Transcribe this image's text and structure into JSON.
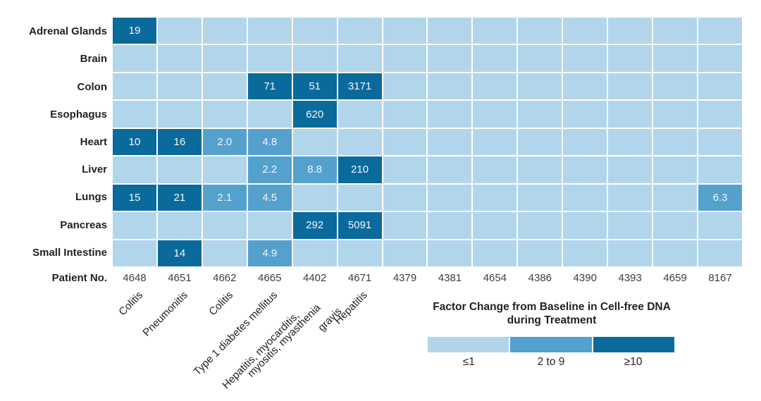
{
  "chart_data": {
    "type": "heatmap",
    "rows": [
      "Adrenal Glands",
      "Brain",
      "Colon",
      "Esophagus",
      "Heart",
      "Liver",
      "Lungs",
      "Pancreas",
      "Small Intestine"
    ],
    "columns_axis_label": "Patient No.",
    "columns": [
      "4648",
      "4651",
      "4662",
      "4665",
      "4402",
      "4671",
      "4379",
      "4381",
      "4654",
      "4386",
      "4390",
      "4393",
      "4659",
      "8167"
    ],
    "cells": [
      [
        "19",
        "",
        "",
        "",
        "",
        "",
        "",
        "",
        "",
        "",
        "",
        "",
        "",
        ""
      ],
      [
        "",
        "",
        "",
        "",
        "",
        "",
        "",
        "",
        "",
        "",
        "",
        "",
        "",
        ""
      ],
      [
        "",
        "",
        "",
        "71",
        "51",
        "3171",
        "",
        "",
        "",
        "",
        "",
        "",
        "",
        ""
      ],
      [
        "",
        "",
        "",
        "",
        "620",
        "",
        "",
        "",
        "",
        "",
        "",
        "",
        "",
        ""
      ],
      [
        "10",
        "16",
        "2.0",
        "4.8",
        "",
        "",
        "",
        "",
        "",
        "",
        "",
        "",
        "",
        ""
      ],
      [
        "",
        "",
        "",
        "2.2",
        "8.8",
        "210",
        "",
        "",
        "",
        "",
        "",
        "",
        "",
        ""
      ],
      [
        "15",
        "21",
        "2.1",
        "4.5",
        "",
        "",
        "",
        "",
        "",
        "",
        "",
        "",
        "",
        "6.3"
      ],
      [
        "",
        "",
        "",
        "",
        "292",
        "5091",
        "",
        "",
        "",
        "",
        "",
        "",
        "",
        ""
      ],
      [
        "",
        "14",
        "",
        "4.9",
        "",
        "",
        "",
        "",
        "",
        "",
        "",
        "",
        "",
        ""
      ]
    ],
    "diagnoses": [
      {
        "column_index": 0,
        "lines": [
          "Colitis"
        ]
      },
      {
        "column_index": 1,
        "lines": [
          "Pneumonitis"
        ]
      },
      {
        "column_index": 2,
        "lines": [
          "Colitis"
        ]
      },
      {
        "column_index": 3,
        "lines": [
          "Type 1 diabetes mellitus"
        ]
      },
      {
        "column_index": 4,
        "lines": [
          "Hepatitis, myocarditis,",
          "myositis, myasthenia",
          "gravis"
        ]
      },
      {
        "column_index": 5,
        "lines": [
          "Hepatitis"
        ]
      }
    ],
    "legend": {
      "title": [
        "Factor Change from Baseline in Cell-free DNA",
        "during Treatment"
      ],
      "bins": [
        {
          "label": "≤1",
          "color": "#b1d5eb"
        },
        {
          "label": "2 to 9",
          "color": "#54a1cd"
        },
        {
          "label": "≥10",
          "color": "#0b6a9c"
        }
      ]
    },
    "colors": {
      "empty": "#b1d5eb",
      "mid": "#54a1cd",
      "high": "#0b6a9c",
      "gridline": "#ffffff",
      "cell_text": "#f2f7fb"
    },
    "value_thresholds": {
      "low_max": 1,
      "mid_min": 2,
      "mid_max": 9,
      "high_min": 10
    }
  }
}
